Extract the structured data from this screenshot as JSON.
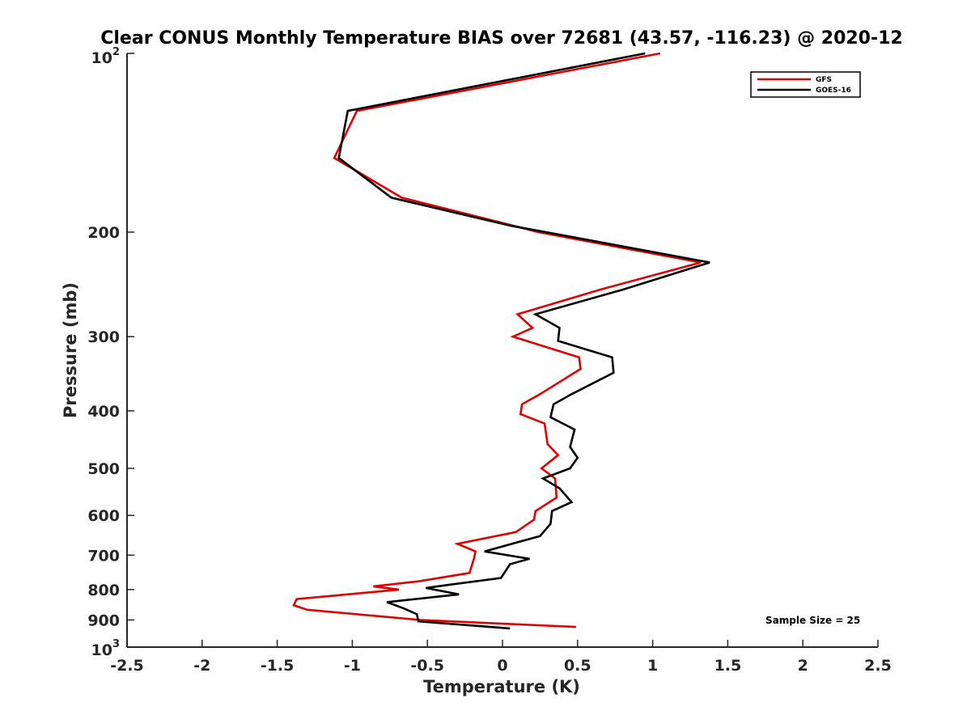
{
  "chart_data": {
    "type": "line",
    "title": "Clear CONUS Monthly Temperature BIAS over 72681 (43.57, -116.23) @ 2020-12",
    "xlabel": "Temperature (K)",
    "ylabel": "Pressure (mb)",
    "xlim": [
      -2.5,
      2.5
    ],
    "ylim": [
      100,
      1000
    ],
    "yscale": "log",
    "y_reversed": true,
    "grid": false,
    "legend_position": "top-right",
    "x_ticks": [
      -2.5,
      -2,
      -1.5,
      -1,
      -0.5,
      0,
      0.5,
      1,
      1.5,
      2,
      2.5
    ],
    "x_tick_labels": [
      "-2.5",
      "-2",
      "-1.5",
      "-1",
      "-0.5",
      "0",
      "0.5",
      "1",
      "1.5",
      "2",
      "2.5"
    ],
    "y_ticks": [
      200,
      300,
      400,
      500,
      600,
      700,
      800,
      900
    ],
    "y_tick_labels": [
      "200",
      "300",
      "400",
      "500",
      "600",
      "700",
      "800",
      "900"
    ],
    "y_tick_top": {
      "base": "10",
      "exp": "2"
    },
    "y_tick_bottom": {
      "base": "10",
      "exp": "3"
    },
    "series": [
      {
        "name": "GFS",
        "color": "#e00000",
        "points": [
          [
            1.05,
            100
          ],
          [
            -0.97,
            125
          ],
          [
            -1.12,
            150
          ],
          [
            -0.67,
            175
          ],
          [
            0.07,
            195
          ],
          [
            0.24,
            200
          ],
          [
            1.32,
            225
          ],
          [
            0.65,
            250
          ],
          [
            0.1,
            275
          ],
          [
            0.2,
            290
          ],
          [
            0.07,
            300
          ],
          [
            0.51,
            325
          ],
          [
            0.52,
            340
          ],
          [
            0.25,
            375
          ],
          [
            0.13,
            390
          ],
          [
            0.12,
            405
          ],
          [
            0.28,
            420
          ],
          [
            0.3,
            455
          ],
          [
            0.37,
            475
          ],
          [
            0.26,
            500
          ],
          [
            0.35,
            520
          ],
          [
            0.36,
            560
          ],
          [
            0.22,
            590
          ],
          [
            0.21,
            610
          ],
          [
            0.09,
            640
          ],
          [
            -0.3,
            670
          ],
          [
            -0.18,
            690
          ],
          [
            -0.19,
            710
          ],
          [
            -0.22,
            750
          ],
          [
            -0.56,
            775
          ],
          [
            -0.86,
            790
          ],
          [
            -0.69,
            800
          ],
          [
            -1.37,
            830
          ],
          [
            -1.39,
            850
          ],
          [
            -1.3,
            865
          ],
          [
            -0.55,
            900
          ],
          [
            0.49,
            925
          ]
        ]
      },
      {
        "name": "GOES-16",
        "color": "#000000",
        "points": [
          [
            0.95,
            100
          ],
          [
            -1.03,
            125
          ],
          [
            -1.09,
            150
          ],
          [
            -0.74,
            175
          ],
          [
            0.05,
            195
          ],
          [
            0.29,
            200
          ],
          [
            1.38,
            225
          ],
          [
            0.8,
            250
          ],
          [
            0.22,
            275
          ],
          [
            0.38,
            290
          ],
          [
            0.37,
            305
          ],
          [
            0.73,
            325
          ],
          [
            0.74,
            345
          ],
          [
            0.46,
            375
          ],
          [
            0.34,
            390
          ],
          [
            0.32,
            410
          ],
          [
            0.48,
            430
          ],
          [
            0.45,
            460
          ],
          [
            0.5,
            480
          ],
          [
            0.45,
            500
          ],
          [
            0.27,
            520
          ],
          [
            0.38,
            540
          ],
          [
            0.46,
            570
          ],
          [
            0.33,
            590
          ],
          [
            0.32,
            620
          ],
          [
            0.25,
            650
          ],
          [
            -0.12,
            690
          ],
          [
            0.18,
            710
          ],
          [
            0.05,
            725
          ],
          [
            -0.01,
            765
          ],
          [
            -0.35,
            785
          ],
          [
            -0.51,
            795
          ],
          [
            -0.29,
            815
          ],
          [
            -0.77,
            840
          ],
          [
            -0.66,
            860
          ],
          [
            -0.57,
            880
          ],
          [
            -0.56,
            905
          ],
          [
            0.05,
            930
          ]
        ]
      }
    ],
    "annotation": "Sample Size = 25"
  }
}
